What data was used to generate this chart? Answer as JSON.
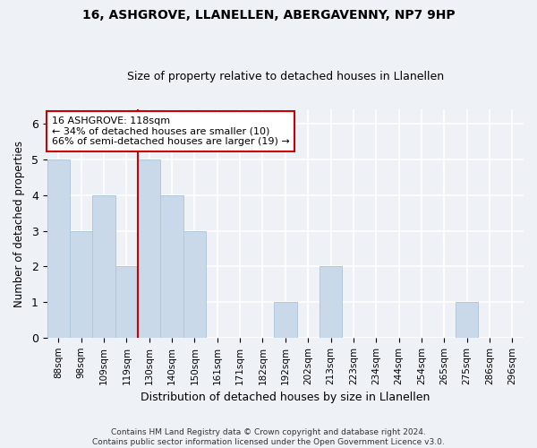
{
  "title1": "16, ASHGROVE, LLANELLEN, ABERGAVENNY, NP7 9HP",
  "title2": "Size of property relative to detached houses in Llanellen",
  "xlabel": "Distribution of detached houses by size in Llanellen",
  "ylabel": "Number of detached properties",
  "categories": [
    "88sqm",
    "98sqm",
    "109sqm",
    "119sqm",
    "130sqm",
    "140sqm",
    "150sqm",
    "161sqm",
    "171sqm",
    "182sqm",
    "192sqm",
    "202sqm",
    "213sqm",
    "223sqm",
    "234sqm",
    "244sqm",
    "254sqm",
    "265sqm",
    "275sqm",
    "286sqm",
    "296sqm"
  ],
  "values": [
    5,
    3,
    4,
    2,
    5,
    4,
    3,
    0,
    0,
    0,
    1,
    0,
    2,
    0,
    0,
    0,
    0,
    0,
    1,
    0,
    0
  ],
  "bar_color": "#c9d9ea",
  "bar_edge_color": "#b0c8dc",
  "vline_x": 3.5,
  "vline_color": "#cc0000",
  "annotation_text": "16 ASHGROVE: 118sqm\n← 34% of detached houses are smaller (10)\n66% of semi-detached houses are larger (19) →",
  "annotation_box_color": "#ffffff",
  "annotation_box_edge_color": "#cc0000",
  "ylim": [
    0,
    6.4
  ],
  "yticks": [
    0,
    1,
    2,
    3,
    4,
    5,
    6
  ],
  "background_color": "#eef2f7",
  "grid_color": "#ffffff",
  "footer": "Contains HM Land Registry data © Crown copyright and database right 2024.\nContains public sector information licensed under the Open Government Licence v3.0."
}
